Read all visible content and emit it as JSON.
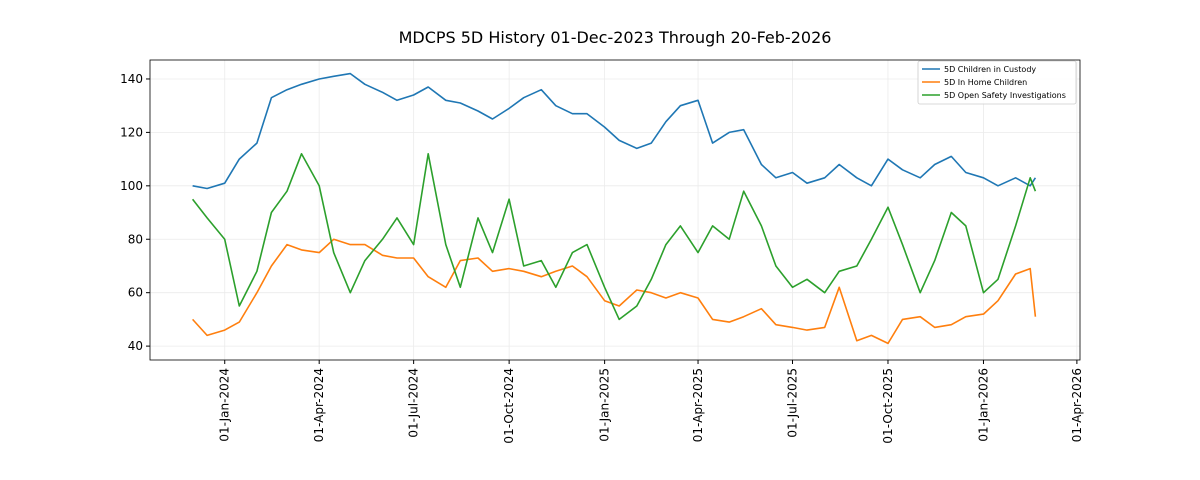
{
  "chart_data": {
    "type": "line",
    "title": "MDCPS 5D History 01-Dec-2023 Through 20-Feb-2026",
    "x": [
      "2023-12-01",
      "2023-12-15",
      "2024-01-01",
      "2024-01-15",
      "2024-02-01",
      "2024-02-15",
      "2024-03-01",
      "2024-03-15",
      "2024-04-01",
      "2024-04-15",
      "2024-05-01",
      "2024-05-15",
      "2024-06-01",
      "2024-06-15",
      "2024-07-01",
      "2024-07-15",
      "2024-08-01",
      "2024-08-15",
      "2024-09-01",
      "2024-09-15",
      "2024-10-01",
      "2024-10-15",
      "2024-11-01",
      "2024-11-15",
      "2024-12-01",
      "2024-12-15",
      "2025-01-01",
      "2025-01-15",
      "2025-02-01",
      "2025-02-15",
      "2025-03-01",
      "2025-03-15",
      "2025-04-01",
      "2025-04-15",
      "2025-05-01",
      "2025-05-15",
      "2025-06-01",
      "2025-06-15",
      "2025-07-01",
      "2025-07-15",
      "2025-08-01",
      "2025-08-15",
      "2025-09-01",
      "2025-09-15",
      "2025-10-01",
      "2025-10-15",
      "2025-11-01",
      "2025-11-15",
      "2025-12-01",
      "2025-12-15",
      "2026-01-01",
      "2026-01-15",
      "2026-02-01",
      "2026-02-15",
      "2026-02-20"
    ],
    "series": [
      {
        "name": "5D Children in Custody",
        "color": "#1f77b4",
        "values": [
          100,
          99,
          101,
          110,
          116,
          133,
          136,
          138,
          140,
          141,
          142,
          138,
          135,
          132,
          134,
          137,
          132,
          131,
          128,
          125,
          129,
          133,
          136,
          130,
          127,
          127,
          122,
          117,
          114,
          116,
          124,
          130,
          132,
          116,
          120,
          121,
          108,
          103,
          105,
          101,
          103,
          108,
          103,
          100,
          110,
          106,
          103,
          108,
          111,
          105,
          103,
          100,
          103,
          100,
          103
        ]
      },
      {
        "name": "5D In Home Children",
        "color": "#ff7f0e",
        "values": [
          50,
          44,
          46,
          49,
          60,
          70,
          78,
          76,
          75,
          80,
          78,
          78,
          74,
          73,
          73,
          66,
          62,
          72,
          73,
          68,
          69,
          68,
          66,
          68,
          70,
          66,
          57,
          55,
          61,
          60,
          58,
          60,
          58,
          50,
          49,
          51,
          54,
          48,
          47,
          46,
          47,
          62,
          42,
          44,
          41,
          50,
          51,
          47,
          48,
          51,
          52,
          57,
          67,
          69,
          51
        ]
      },
      {
        "name": "5D Open Safety Investigations",
        "color": "#2ca02c",
        "values": [
          95,
          88,
          80,
          55,
          68,
          90,
          98,
          112,
          100,
          75,
          60,
          72,
          80,
          88,
          78,
          112,
          78,
          62,
          88,
          75,
          95,
          70,
          72,
          62,
          75,
          78,
          62,
          50,
          55,
          65,
          78,
          85,
          75,
          85,
          80,
          98,
          85,
          70,
          62,
          65,
          60,
          68,
          70,
          80,
          92,
          78,
          60,
          72,
          90,
          85,
          60,
          65,
          85,
          103,
          98
        ]
      }
    ],
    "xlim": [
      "2023-10-21",
      "2026-04-04"
    ],
    "xticks": [
      {
        "value": "2024-01-01",
        "label": "01-Jan-2024"
      },
      {
        "value": "2024-04-01",
        "label": "01-Apr-2024"
      },
      {
        "value": "2024-07-01",
        "label": "01-Jul-2024"
      },
      {
        "value": "2024-10-01",
        "label": "01-Oct-2024"
      },
      {
        "value": "2025-01-01",
        "label": "01-Jan-2025"
      },
      {
        "value": "2025-04-01",
        "label": "01-Apr-2025"
      },
      {
        "value": "2025-07-01",
        "label": "01-Jul-2025"
      },
      {
        "value": "2025-10-01",
        "label": "01-Oct-2025"
      },
      {
        "value": "2026-01-01",
        "label": "01-Jan-2026"
      },
      {
        "value": "2026-04-01",
        "label": "01-Apr-2026"
      }
    ],
    "ylim": [
      34.8,
      147.1
    ],
    "yticks": [
      40,
      60,
      80,
      100,
      120,
      140
    ],
    "grid": true,
    "legend": "upper right"
  }
}
